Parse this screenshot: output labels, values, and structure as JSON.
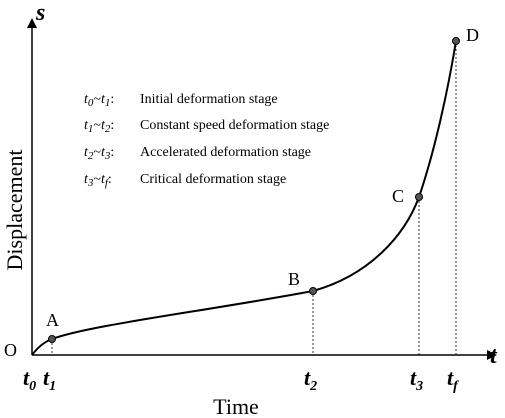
{
  "axes": {
    "y_symbol": "s",
    "x_symbol": "t",
    "y_label": "Displacement",
    "x_label": "Time",
    "origin": "O"
  },
  "points": [
    "A",
    "B",
    "C",
    "D"
  ],
  "time_symbol": "t",
  "ticks": [
    "0",
    "1",
    "2",
    "3",
    "f"
  ],
  "legend": {
    "separator": "~",
    "colon": ":",
    "items": [
      {
        "from": "0",
        "to": "1",
        "text": "Initial deformation stage"
      },
      {
        "from": "1",
        "to": "2",
        "text": "Constant speed deformation stage"
      },
      {
        "from": "2",
        "to": "3",
        "text": "Accelerated deformation stage"
      },
      {
        "from": "3",
        "to": "f",
        "text": "Critical deformation stage"
      }
    ]
  }
}
